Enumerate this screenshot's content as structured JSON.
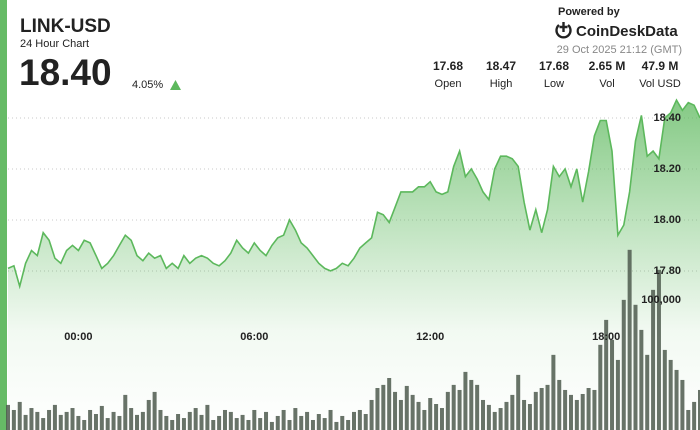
{
  "header": {
    "symbol": "LINK-USD",
    "subtitle": "24 Hour Chart",
    "price": "18.40",
    "change": "4.05%",
    "stats": [
      {
        "value": "17.68",
        "label": "Open"
      },
      {
        "value": "18.47",
        "label": "High"
      },
      {
        "value": "17.68",
        "label": "Low"
      },
      {
        "value": "2.65 M",
        "label": "Vol"
      },
      {
        "value": "47.9 M",
        "label": "Vol USD"
      }
    ],
    "powered_by": "Powered by",
    "brand": "CoinDeskData",
    "timestamp": "29 Oct 2025 21:12 (GMT)"
  },
  "chart_data": {
    "type": "area",
    "color": "#5cb85c",
    "grid": true,
    "x": [
      -2.4,
      -2.2,
      -2,
      -1.8,
      -1.6,
      -1.4,
      -1.2,
      -1,
      -0.8,
      -0.6,
      -0.4,
      -0.2,
      0,
      0.2,
      0.4,
      0.6,
      0.8,
      1,
      1.2,
      1.4,
      1.6,
      1.8,
      2,
      2.2,
      2.4,
      2.6,
      2.8,
      3,
      3.2,
      3.4,
      3.6,
      3.8,
      4,
      4.2,
      4.4,
      4.6,
      4.8,
      5,
      5.2,
      5.4,
      5.6,
      5.8,
      6,
      6.2,
      6.4,
      6.6,
      6.8,
      7,
      7.2,
      7.4,
      7.6,
      7.8,
      8,
      8.2,
      8.4,
      8.6,
      8.8,
      9,
      9.2,
      9.4,
      9.6,
      9.8,
      10,
      10.2,
      10.4,
      10.6,
      10.8,
      11,
      11.2,
      11.4,
      11.6,
      11.8,
      12,
      12.2,
      12.4,
      12.6,
      12.8,
      13,
      13.2,
      13.4,
      13.6,
      13.8,
      14,
      14.2,
      14.4,
      14.6,
      14.8,
      15,
      15.2,
      15.4,
      15.6,
      15.8,
      16,
      16.2,
      16.4,
      16.6,
      16.8,
      17,
      17.2,
      17.4,
      17.6,
      17.8,
      18,
      18.2,
      18.4,
      18.6,
      18.8,
      19,
      19.2,
      19.4,
      19.6,
      19.8,
      20,
      20.2,
      20.4,
      20.6,
      20.8,
      21,
      21.2
    ],
    "values": [
      17.81,
      17.82,
      17.74,
      17.83,
      17.88,
      17.86,
      17.95,
      17.92,
      17.85,
      17.83,
      17.88,
      17.9,
      17.88,
      17.92,
      17.91,
      17.86,
      17.81,
      17.83,
      17.86,
      17.9,
      17.94,
      17.92,
      17.86,
      17.84,
      17.87,
      17.85,
      17.86,
      17.81,
      17.83,
      17.81,
      17.86,
      17.83,
      17.85,
      17.86,
      17.85,
      17.83,
      17.82,
      17.84,
      17.87,
      17.92,
      17.89,
      17.87,
      17.91,
      17.88,
      17.86,
      17.9,
      17.93,
      17.94,
      18.0,
      17.96,
      17.91,
      17.89,
      17.86,
      17.83,
      17.81,
      17.8,
      17.81,
      17.83,
      17.82,
      17.85,
      17.89,
      17.91,
      17.93,
      18.03,
      18.02,
      17.99,
      18.05,
      18.11,
      18.11,
      18.11,
      18.13,
      18.13,
      18.15,
      18.11,
      18.1,
      18.11,
      18.21,
      18.27,
      18.17,
      18.2,
      18.16,
      18.11,
      18.08,
      18.2,
      18.25,
      18.25,
      18.24,
      18.21,
      18.07,
      17.96,
      18.04,
      17.95,
      18.04,
      18.21,
      18.17,
      18.2,
      18.13,
      18.2,
      18.07,
      18.19,
      18.33,
      18.39,
      18.39,
      18.27,
      17.94,
      17.98,
      18.11,
      18.31,
      18.41,
      18.25,
      18.27,
      18.24,
      18.4,
      18.42,
      18.47,
      18.43,
      18.46,
      18.45,
      18.4
    ],
    "xlim": [
      -2.4,
      21.2
    ],
    "xticks": [
      {
        "value": 0,
        "label": "00:00"
      },
      {
        "value": 6,
        "label": "06:00"
      },
      {
        "value": 12,
        "label": "12:00"
      },
      {
        "value": 18,
        "label": "18:00"
      }
    ],
    "ylim": [
      17.18,
      18.49
    ],
    "yticks": [
      {
        "value": 17.8,
        "label": "17.80"
      },
      {
        "value": 18,
        "label": "18.00"
      },
      {
        "value": 18.2,
        "label": "18.20"
      },
      {
        "value": 18.4,
        "label": "18.40"
      }
    ],
    "volume": {
      "type": "bar",
      "color": "#4e5a4e",
      "values": [
        19300,
        15400,
        21600,
        11600,
        16900,
        13900,
        9200,
        15400,
        19300,
        11600,
        13900,
        16900,
        10800,
        7700,
        15400,
        12300,
        18500,
        9200,
        13900,
        10800,
        27000,
        16900,
        11600,
        13900,
        23100,
        29300,
        15400,
        10800,
        7700,
        12300,
        9200,
        13900,
        16900,
        11600,
        19300,
        7700,
        10800,
        15400,
        13900,
        9200,
        11600,
        7700,
        15400,
        9200,
        13900,
        6200,
        10800,
        15400,
        7700,
        16900,
        10800,
        13900,
        7700,
        12300,
        9200,
        15400,
        6200,
        10800,
        7700,
        13900,
        15400,
        12300,
        23100,
        32300,
        34700,
        40000,
        29300,
        23100,
        33900,
        27000,
        21600,
        15400,
        24600,
        20000,
        16900,
        29300,
        34700,
        30800,
        44700,
        38500,
        34700,
        23100,
        19300,
        13900,
        16900,
        21600,
        27000,
        42400,
        23100,
        20000,
        29300,
        32300,
        34700,
        57800,
        38500,
        30800,
        27000,
        23100,
        27700,
        32300,
        30800,
        65500,
        84700,
        69300,
        53900,
        100100,
        138600,
        96300,
        77000,
        57800,
        107800,
        123200,
        61600,
        53900,
        46200,
        38500,
        15400,
        21600,
        30800
      ],
      "ylim": [
        0,
        200000
      ],
      "yticks": [
        {
          "value": 100000,
          "label": "100,000"
        }
      ]
    }
  }
}
